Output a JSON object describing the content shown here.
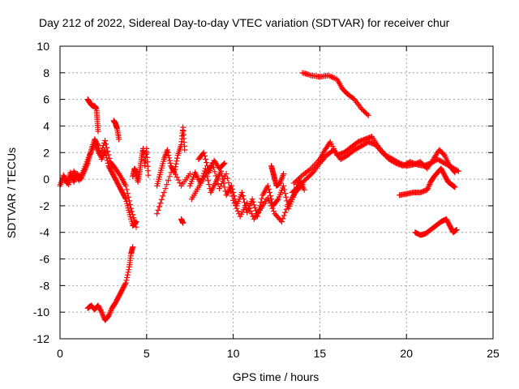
{
  "chart_data": {
    "type": "scatter",
    "title": "Day 212 of 2022, Sidereal Day-to-day VTEC variation (SDTVAR) for receiver chur",
    "xlabel": "GPS time / hours",
    "ylabel": "SDTVAR / TECUs",
    "xlim": [
      0,
      25
    ],
    "ylim": [
      -12,
      10
    ],
    "xticks": [
      0,
      5,
      10,
      15,
      20,
      25
    ],
    "yticks": [
      -12,
      -10,
      -8,
      -6,
      -4,
      -2,
      0,
      2,
      4,
      6,
      8,
      10
    ],
    "xtick_labels": [
      "0",
      "5",
      "10",
      "15",
      "20",
      "25"
    ],
    "ytick_labels": [
      "-12",
      "-10",
      "-8",
      "-6",
      "-4",
      "-2",
      "0",
      "2",
      "4",
      "6",
      "8",
      "10"
    ],
    "grid": true,
    "marker": "+",
    "color": "#ff0000",
    "series": [
      {
        "name": "s1",
        "x": [
          0.0,
          0.2,
          0.4,
          0.6,
          0.8,
          1.0,
          1.2,
          1.4,
          1.6,
          1.8,
          2.0,
          2.2,
          2.4,
          2.6,
          2.8,
          3.0,
          3.2,
          3.4,
          3.6,
          3.8,
          4.0,
          4.2,
          4.4
        ],
        "y": [
          -0.5,
          0.2,
          -0.3,
          0.5,
          -0.2,
          0.4,
          0.0,
          0.6,
          1.2,
          2.2,
          3.0,
          2.5,
          1.5,
          2.2,
          1.0,
          0.5,
          0.0,
          -0.5,
          -1.0,
          -1.5,
          -2.5,
          -3.5,
          -3.2
        ]
      },
      {
        "name": "s2",
        "x": [
          0.2,
          0.5,
          0.8,
          1.1,
          1.4,
          1.7,
          2.0,
          2.3,
          2.6,
          2.9,
          3.2,
          3.5,
          3.8,
          4.1,
          4.4
        ],
        "y": [
          0.3,
          -0.4,
          0.6,
          -0.1,
          0.8,
          1.8,
          2.6,
          1.8,
          2.9,
          1.3,
          0.8,
          0.2,
          -0.5,
          -2.2,
          -3.6
        ]
      },
      {
        "name": "s3",
        "x": [
          1.6,
          1.7,
          1.8,
          1.9,
          2.0,
          2.1,
          2.15,
          2.2
        ],
        "y": [
          6.0,
          5.8,
          5.6,
          5.5,
          5.5,
          5.3,
          4.5,
          3.6
        ]
      },
      {
        "name": "s4",
        "x": [
          3.1,
          3.2,
          3.3,
          3.4
        ],
        "y": [
          4.4,
          4.2,
          3.8,
          3.0
        ]
      },
      {
        "name": "s5",
        "x": [
          1.6,
          1.8,
          2.0,
          2.2,
          2.4,
          2.6,
          2.8,
          3.0,
          3.2,
          3.4,
          3.6,
          3.8,
          4.0,
          4.1,
          4.2
        ],
        "y": [
          -9.7,
          -9.5,
          -9.8,
          -9.5,
          -10.0,
          -10.6,
          -10.3,
          -9.7,
          -9.3,
          -8.8,
          -8.3,
          -7.8,
          -6.6,
          -5.6,
          -5.1
        ]
      },
      {
        "name": "s6",
        "x": [
          4.2,
          4.3,
          4.4,
          4.5,
          4.6,
          4.7,
          4.8,
          4.9,
          5.0,
          5.1
        ],
        "y": [
          0.2,
          0.8,
          0.5,
          -0.2,
          0.6,
          1.5,
          2.3,
          1.0,
          2.3,
          0.3
        ]
      },
      {
        "name": "s7",
        "x": [
          5.6,
          5.8,
          6.0,
          6.2,
          6.4,
          6.6,
          6.8,
          7.0,
          7.1,
          7.2
        ],
        "y": [
          -0.5,
          0.5,
          1.5,
          2.2,
          1.0,
          0.5,
          1.8,
          2.6,
          3.9,
          2.2
        ]
      },
      {
        "name": "s8",
        "x": [
          5.6,
          6.0,
          6.5,
          7.0,
          7.5
        ],
        "y": [
          -2.6,
          -1.0,
          0.8,
          -0.5,
          0.4
        ]
      },
      {
        "name": "s9",
        "x": [
          7.0,
          7.1
        ],
        "y": [
          -3.0,
          -3.3
        ]
      },
      {
        "name": "s10",
        "x": [
          7.5,
          7.8,
          8.1,
          8.4,
          8.7,
          9.0,
          9.3,
          9.6,
          9.9,
          10.2,
          10.5,
          10.8,
          11.1,
          11.4,
          11.7,
          12.0,
          12.3,
          12.6,
          12.9,
          13.2,
          13.5,
          13.8,
          14.1
        ],
        "y": [
          -0.5,
          0.5,
          -0.3,
          0.8,
          -1.0,
          -0.2,
          0.6,
          -1.2,
          -0.5,
          -2.0,
          -1.0,
          -2.5,
          -1.5,
          -2.8,
          -1.2,
          -0.5,
          -2.0,
          -1.5,
          -0.5,
          -2.2,
          -1.2,
          0.0,
          -0.8
        ]
      },
      {
        "name": "s11",
        "x": [
          7.6,
          8.0,
          8.4,
          8.8,
          9.2,
          9.6,
          10.0,
          10.4,
          10.8,
          11.2,
          11.6,
          12.0,
          12.4,
          12.8,
          13.2,
          13.6,
          14.0
        ],
        "y": [
          -1.5,
          -0.6,
          0.3,
          1.2,
          -0.7,
          0.4,
          -1.6,
          -2.8,
          -1.8,
          -3.0,
          -2.2,
          -1.4,
          -2.6,
          -3.2,
          -1.8,
          -1.0,
          -0.4
        ]
      },
      {
        "name": "s12",
        "x": [
          8.0,
          8.3,
          8.6,
          8.9,
          9.2,
          9.5
        ],
        "y": [
          1.5,
          2.0,
          0.5,
          1.4,
          0.8,
          1.2
        ]
      },
      {
        "name": "s13",
        "x": [
          12.2,
          12.3,
          12.4,
          12.5,
          12.7,
          12.9
        ],
        "y": [
          1.0,
          0.5,
          0.0,
          -0.5,
          -0.3,
          0.4
        ]
      },
      {
        "name": "s14",
        "x": [
          14.0,
          14.5,
          15.0,
          15.5,
          16.0,
          16.3,
          16.6,
          17.0,
          17.4,
          17.8
        ],
        "y": [
          8.0,
          7.8,
          7.7,
          7.8,
          7.5,
          6.8,
          6.4,
          6.0,
          5.3,
          4.8
        ]
      },
      {
        "name": "s15",
        "x": [
          13.4,
          13.8,
          14.2,
          14.6,
          15.0,
          15.4,
          15.8,
          16.2,
          16.6,
          17.0,
          17.4,
          17.8,
          18.2,
          18.6,
          19.0,
          19.4,
          19.8,
          20.2,
          20.6,
          21.0,
          21.4,
          21.8,
          22.2,
          22.6,
          23.0
        ],
        "y": [
          -1.0,
          -0.5,
          0.0,
          0.5,
          1.2,
          1.8,
          2.2,
          1.5,
          1.8,
          2.2,
          2.5,
          2.8,
          2.6,
          2.0,
          1.5,
          1.2,
          1.0,
          1.3,
          1.1,
          1.0,
          1.2,
          1.5,
          1.2,
          0.9,
          0.6
        ]
      },
      {
        "name": "s16",
        "x": [
          13.5,
          14.0,
          14.5,
          15.0,
          15.3,
          15.6,
          16.0,
          16.4,
          16.8,
          17.2,
          17.6,
          18.0,
          18.4,
          18.8,
          19.2,
          19.6,
          20.0,
          20.4,
          20.8,
          21.2,
          21.6,
          21.9,
          22.2,
          22.5,
          22.8
        ],
        "y": [
          -0.3,
          0.3,
          0.8,
          1.5,
          2.2,
          2.8,
          1.8,
          2.0,
          2.4,
          2.8,
          3.0,
          3.2,
          2.4,
          1.8,
          1.5,
          1.2,
          1.0,
          1.1,
          1.3,
          0.8,
          1.6,
          2.2,
          1.8,
          1.0,
          0.5
        ]
      },
      {
        "name": "s17",
        "x": [
          19.6,
          20.0,
          20.4,
          20.8,
          21.2,
          21.4,
          21.6,
          21.8,
          22.0,
          22.2,
          22.4,
          22.6,
          22.8
        ],
        "y": [
          -1.2,
          -1.1,
          -1.0,
          -1.0,
          -0.8,
          -0.2,
          0.2,
          0.5,
          0.8,
          0.3,
          -0.2,
          -0.4,
          -0.6
        ]
      },
      {
        "name": "s18",
        "x": [
          20.5,
          20.8,
          21.1,
          21.4,
          21.7,
          22.0,
          22.3,
          22.5,
          22.7,
          22.9
        ],
        "y": [
          -4.0,
          -4.2,
          -4.1,
          -3.8,
          -3.5,
          -3.2,
          -3.0,
          -3.5,
          -4.0,
          -3.8
        ]
      }
    ]
  }
}
